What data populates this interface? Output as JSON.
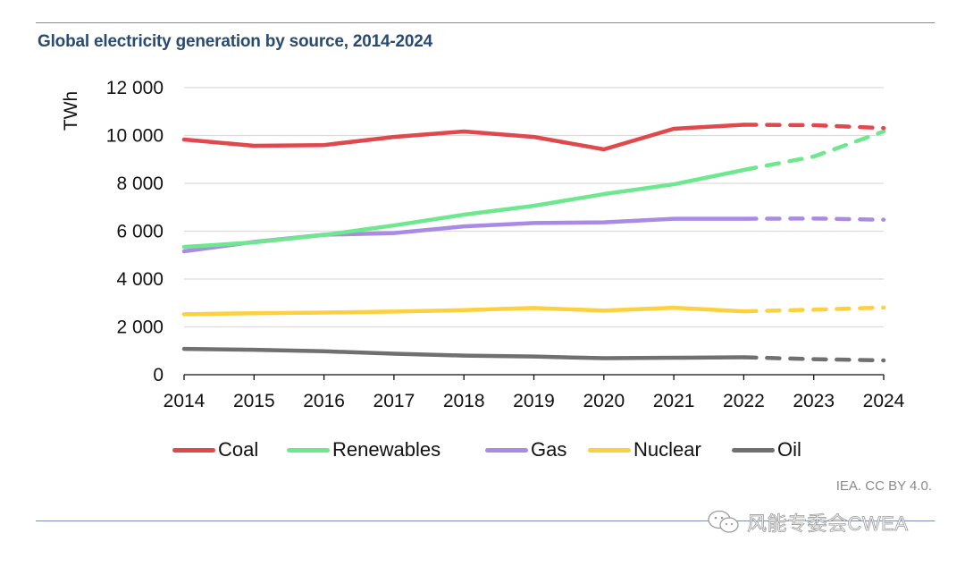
{
  "header": {
    "title": "Global electricity generation by source, 2014-2024"
  },
  "footer": {
    "source": "IEA. CC BY 4.0.",
    "watermark": "风能专委会CWEA",
    "watermark_icon": "wechat-chat-icon"
  },
  "chart_data": {
    "type": "line",
    "title": "Global electricity generation by source, 2014-2024",
    "xlabel": "",
    "ylabel": "TWh",
    "x": [
      2014,
      2015,
      2016,
      2017,
      2018,
      2019,
      2020,
      2021,
      2022,
      2023,
      2024
    ],
    "x_tick_labels": [
      "2014",
      "2015",
      "2016",
      "2017",
      "2018",
      "2019",
      "2020",
      "2021",
      "2022",
      "2023",
      "2024"
    ],
    "ylim": [
      0,
      12000
    ],
    "y_ticks": [
      0,
      2000,
      4000,
      6000,
      8000,
      10000,
      12000
    ],
    "y_tick_labels": [
      "0",
      "2 000",
      "4 000",
      "6 000",
      "8 000",
      "10 000",
      "12 000"
    ],
    "grid": "horizontal",
    "legend_position": "bottom",
    "forecast_start": 2022,
    "forecast_style": "dashed",
    "series": [
      {
        "name": "Coal",
        "color": "#e0484b",
        "values": [
          9830,
          9570,
          9600,
          9940,
          10170,
          9940,
          9420,
          10280,
          10450,
          10430,
          10310
        ]
      },
      {
        "name": "Renewables",
        "color": "#6ee88e",
        "values": [
          5340,
          5530,
          5840,
          6240,
          6690,
          7060,
          7550,
          7960,
          8560,
          9120,
          10170
        ]
      },
      {
        "name": "Gas",
        "color": "#a98be6",
        "values": [
          5160,
          5550,
          5850,
          5920,
          6200,
          6340,
          6370,
          6520,
          6520,
          6530,
          6480
        ]
      },
      {
        "name": "Nuclear",
        "color": "#fcd03e",
        "values": [
          2530,
          2570,
          2600,
          2640,
          2700,
          2790,
          2680,
          2800,
          2650,
          2720,
          2810
        ]
      },
      {
        "name": "Oil",
        "color": "#707070",
        "values": [
          1080,
          1040,
          980,
          880,
          800,
          760,
          690,
          710,
          730,
          650,
          600
        ]
      }
    ]
  }
}
